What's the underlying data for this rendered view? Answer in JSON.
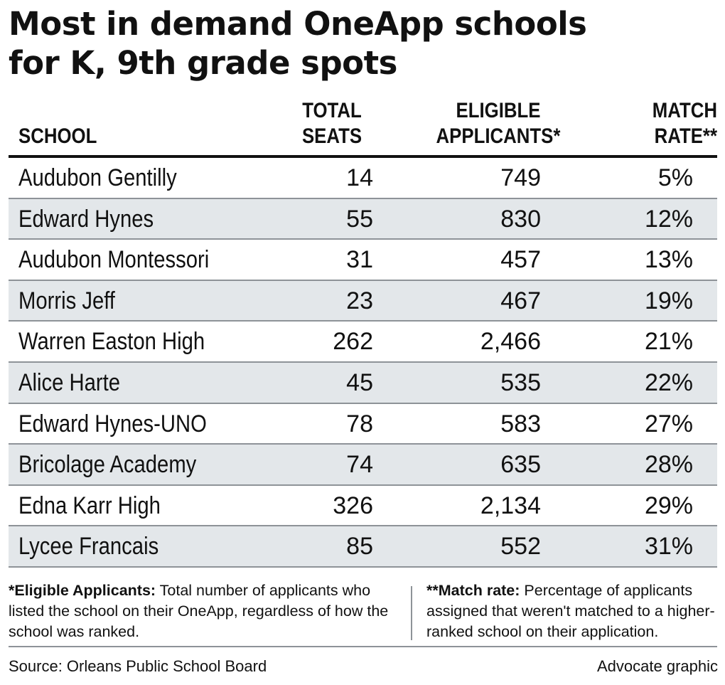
{
  "title_line1": "Most in demand OneApp schools",
  "title_line2": "for K, 9th grade spots",
  "chart_data": {
    "type": "table",
    "columns": {
      "school": "SCHOOL",
      "seats": [
        "TOTAL",
        "SEATS"
      ],
      "eligible": [
        "ELIGIBLE",
        "APPLICANTS*"
      ],
      "rate": [
        "MATCH",
        "RATE**"
      ]
    },
    "rows": [
      {
        "school": "Audubon Gentilly",
        "seats": "14",
        "eligible": "749",
        "rate": "5%"
      },
      {
        "school": "Edward Hynes",
        "seats": "55",
        "eligible": "830",
        "rate": "12%"
      },
      {
        "school": "Audubon Montessori",
        "seats": "31",
        "eligible": "457",
        "rate": "13%"
      },
      {
        "school": "Morris Jeff",
        "seats": "23",
        "eligible": "467",
        "rate": "19%"
      },
      {
        "school": "Warren Easton High",
        "seats": "262",
        "eligible": "2,466",
        "rate": "21%"
      },
      {
        "school": "Alice Harte",
        "seats": "45",
        "eligible": "535",
        "rate": "22%"
      },
      {
        "school": "Edward Hynes-UNO",
        "seats": "78",
        "eligible": "583",
        "rate": "27%"
      },
      {
        "school": "Bricolage Academy",
        "seats": "74",
        "eligible": "635",
        "rate": "28%"
      },
      {
        "school": "Edna Karr High",
        "seats": "326",
        "eligible": "2,134",
        "rate": "29%"
      },
      {
        "school": "Lycee Francais",
        "seats": "85",
        "eligible": "552",
        "rate": "31%"
      }
    ]
  },
  "notes": {
    "eligible_term": "*Eligible Applicants:",
    "eligible_text": " Total number of applicants who listed the school on their OneApp, regardless of how the school was ranked.",
    "rate_term": "**Match rate:",
    "rate_text": " Percentage of applicants assigned that weren't matched to a higher-ranked school on their application."
  },
  "source": "Source: Orleans Public School Board",
  "credit": "Advocate graphic",
  "colors": {
    "alt_row": "#e3e7ea",
    "rule": "#8e9398",
    "text": "#111111"
  }
}
